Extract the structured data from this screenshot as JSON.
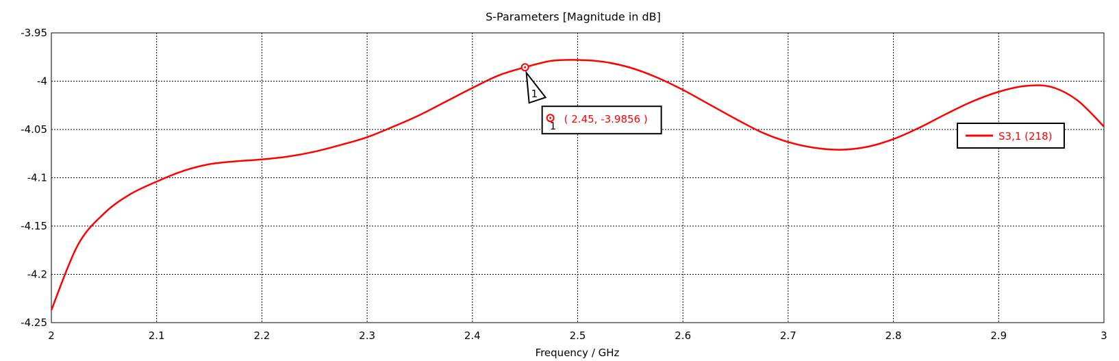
{
  "chart_data": {
    "type": "line",
    "title": "S-Parameters [Magnitude in dB]",
    "xlabel": "Frequency / GHz",
    "ylabel": "",
    "xlim": [
      2,
      3
    ],
    "ylim": [
      -4.25,
      -3.95
    ],
    "x_ticks": [
      "2",
      "2.1",
      "2.2",
      "2.3",
      "2.4",
      "2.5",
      "2.6",
      "2.7",
      "2.8",
      "2.9",
      "3"
    ],
    "y_ticks": [
      "-3.95",
      "-4",
      "-4.05",
      "-4.1",
      "-4.15",
      "-4.2",
      "-4.25"
    ],
    "grid": true,
    "legend_position": "right",
    "series": [
      {
        "name": "S3,1 (218)",
        "color": "#ff0000",
        "x": [
          2.0,
          2.025,
          2.05,
          2.075,
          2.1,
          2.125,
          2.15,
          2.175,
          2.2,
          2.225,
          2.25,
          2.275,
          2.3,
          2.325,
          2.35,
          2.375,
          2.4,
          2.425,
          2.45,
          2.475,
          2.5,
          2.525,
          2.55,
          2.575,
          2.6,
          2.625,
          2.65,
          2.675,
          2.7,
          2.725,
          2.75,
          2.775,
          2.8,
          2.825,
          2.85,
          2.875,
          2.9,
          2.925,
          2.95,
          2.975,
          3.0
        ],
        "y": [
          -4.237,
          -4.17,
          -4.137,
          -4.117,
          -4.104,
          -4.093,
          -4.086,
          -4.083,
          -4.081,
          -4.078,
          -4.073,
          -4.066,
          -4.058,
          -4.047,
          -4.035,
          -4.021,
          -4.007,
          -3.994,
          -3.9856,
          -3.979,
          -3.978,
          -3.98,
          -3.986,
          -3.996,
          -4.009,
          -4.024,
          -4.039,
          -4.053,
          -4.063,
          -4.069,
          -4.071,
          -4.068,
          -4.06,
          -4.048,
          -4.034,
          -4.021,
          -4.011,
          -4.005,
          -4.006,
          -4.02,
          -4.047
        ]
      }
    ],
    "markers": [
      {
        "id": "1",
        "x": 2.45,
        "y": -3.9856,
        "label": "( 2.45, -3.9856 )"
      }
    ]
  }
}
